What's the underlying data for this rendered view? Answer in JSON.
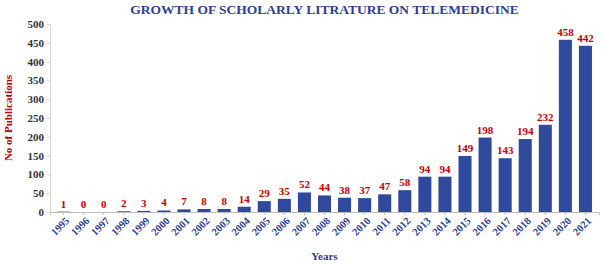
{
  "chart_data": {
    "type": "bar",
    "title": "GROWTH OF SCHOLARLY LITRATURE ON TELEMEDICINE",
    "x_label": "Years",
    "y_label": "No of Publications",
    "categories": [
      "1995",
      "1996",
      "1997",
      "1998",
      "1999",
      "2000",
      "2001",
      "2002",
      "2003",
      "2004",
      "2005",
      "2006",
      "2007",
      "2008",
      "2009",
      "2010",
      "2011",
      "2012",
      "2013",
      "2014",
      "2015",
      "2016",
      "2017",
      "2018",
      "2019",
      "2020",
      "2021"
    ],
    "values": [
      1,
      0,
      0,
      2,
      3,
      4,
      7,
      8,
      8,
      14,
      29,
      35,
      52,
      44,
      38,
      37,
      47,
      58,
      94,
      94,
      149,
      198,
      143,
      194,
      232,
      458,
      442
    ],
    "color": "#2f4a9c",
    "ylim": [
      0,
      500
    ],
    "yticks": [
      0,
      50,
      100,
      150,
      200,
      250,
      300,
      350,
      400,
      450,
      500
    ],
    "grid": false,
    "data_labels": true
  }
}
